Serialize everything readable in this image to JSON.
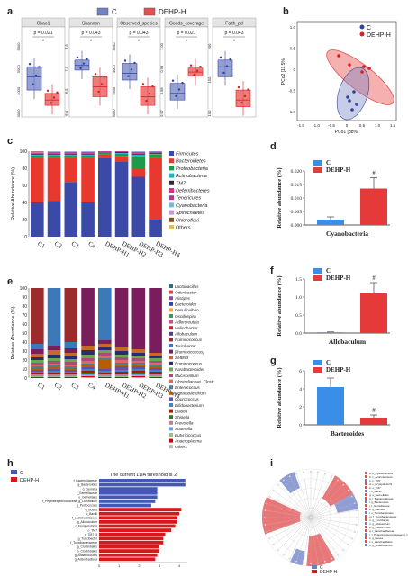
{
  "panel_letters": {
    "a": "a",
    "b": "b",
    "c": "c",
    "d": "d",
    "e": "e",
    "f": "f",
    "g": "g",
    "h": "h",
    "i": "i"
  },
  "colors": {
    "C": "#7282c4",
    "DEHP": "#e8504f",
    "C_dark": "#3342a0",
    "DEHP_dark": "#d61f26",
    "bar_blue": "#3b8ee8",
    "bar_red": "#e63a3a"
  },
  "legend_top": {
    "c": "C",
    "dehp": "DEHP-H"
  },
  "panel_a": {
    "facets": [
      {
        "title": "Chao1",
        "p": "p = 0.021",
        "sig": "*",
        "yticks": [
          "6000",
          "5000",
          "4000",
          "3000"
        ]
      },
      {
        "title": "Shannon",
        "p": "p = 0.043",
        "sig": "*",
        "yticks": [
          "7.5",
          "7.0",
          "6.5",
          "6.0"
        ]
      },
      {
        "title": "Observed_species",
        "p": "p = 0.043",
        "sig": "*",
        "yticks": [
          "4500",
          "4000",
          "3500",
          "3000"
        ]
      },
      {
        "title": "Goods_coverage",
        "p": "p = 0.021",
        "sig": "*",
        "yticks": [
          "1.00",
          "0.99",
          "0.98",
          "0.97"
        ]
      },
      {
        "title": "Faith_pd",
        "p": "p = 0.043",
        "sig": "*",
        "yticks": [
          "200",
          "150",
          "100"
        ]
      }
    ]
  },
  "panel_b": {
    "legend": [
      "C",
      "DEHP-H"
    ],
    "xlabel": "PCo1 [38%]",
    "ylabel": "PCo2 [11.5%]",
    "xticks": [
      "-1.5",
      "-1.0",
      "-0.5",
      "0",
      "0.5",
      "1.0",
      "1.5"
    ],
    "yticks": [
      "1.0",
      "0.5",
      "0",
      "-0.5",
      "-1.0"
    ]
  },
  "panel_c": {
    "ylabel": "Relative Abundance (%)",
    "yticks": [
      "100",
      "80",
      "60",
      "40",
      "20",
      "0"
    ],
    "samples": [
      "C1",
      "C2",
      "C3",
      "C4",
      "DEHP-H1",
      "DEHP-H2",
      "DEHP-H3",
      "DEHP-H4"
    ],
    "legend": [
      "Firmicutes",
      "Bacteroidetes",
      "Proteobacteria",
      "Actinobacteria",
      "TM7",
      "Deferribacteres",
      "Tenericutes",
      "Cyanobacteria",
      "Spirochaetes",
      "Chloroflexi",
      "Others"
    ]
  },
  "panel_d": {
    "legend": [
      "C",
      "DEHP-H"
    ],
    "ylabel": "Relative abundance (%)",
    "yticks": [
      "0.020",
      "0.015",
      "0.010",
      "0.005",
      "0.000"
    ],
    "xlabel": "Cyanobacteria",
    "sig": "#"
  },
  "panel_e": {
    "ylabel": "Relative Abundance (%)",
    "yticks": [
      "100",
      "90",
      "80",
      "70",
      "60",
      "50",
      "40",
      "30",
      "20",
      "10",
      "0"
    ],
    "samples": [
      "C1",
      "C2",
      "C3",
      "C4",
      "DEHP-H1",
      "DEHP-H2",
      "DEHP-H3",
      "DEHP-H4"
    ],
    "legend": [
      "Lactobacillus",
      "Odoribacter",
      "Alistipes",
      "Bacteroides",
      "Desulfovibrio",
      "Oscillospira",
      "Adlercreutzia",
      "Helicobacter",
      "Allobaculum",
      "Ruminococcus",
      "Turicibacter",
      "[Ruminococcus]",
      "SMB53",
      "Ruminococcus",
      "Parabacteroides",
      "Mucispirillum",
      "Clostridiaceae_Clostr",
      "Enterococcus",
      "Dehalobacterium",
      "Coprococcus",
      "Bifidobacterium",
      "Blautia",
      "Shigella",
      "Prevotella",
      "Sutterella",
      "Butyricicoccus",
      "Anaeroplasma",
      "Others"
    ]
  },
  "panel_f": {
    "legend": [
      "C",
      "DEHP-H"
    ],
    "ylabel": "Relative abundance (%)",
    "yticks": [
      "1.5",
      "1.0",
      "0.5",
      "0.0"
    ],
    "xlabel": "Allobaculum",
    "sig": "#"
  },
  "panel_g": {
    "legend": [
      "C",
      "DEHP-H"
    ],
    "ylabel": "Relative abundance (%)",
    "yticks": [
      "6",
      "4",
      "2",
      "0"
    ],
    "xlabel": "Bacteroides",
    "sig": "#"
  },
  "panel_h": {
    "title": "The current LDA threshold is 2",
    "legend": [
      "C",
      "DEHP-H"
    ],
    "xticks": [
      "0",
      "1",
      "2",
      "3",
      "4"
    ],
    "bars": [
      {
        "label": "f_Bacteroidaceae",
        "group": "C",
        "value": 4.3
      },
      {
        "label": "g_Bacteroides",
        "group": "C",
        "value": 4.3
      },
      {
        "label": "g_Gemella",
        "group": "C",
        "value": 2.9
      },
      {
        "label": "f_Gemellaceae",
        "group": "C",
        "value": 2.9
      },
      {
        "label": "o_Gemellales",
        "group": "C",
        "value": 2.9
      },
      {
        "label": "f_Peptostreptococcaceae_g_Clostridium",
        "group": "C",
        "value": 2.8
      },
      {
        "label": "g_Pediococcus",
        "group": "C",
        "value": 2.6
      },
      {
        "label": "g_Bosea",
        "group": "DEHP-H",
        "value": 4.1
      },
      {
        "label": "c_Bacilli",
        "group": "DEHP-H",
        "value": 4.0
      },
      {
        "label": "f_Lactobacillaceae",
        "group": "DEHP-H",
        "value": 3.9
      },
      {
        "label": "g_Allobaculum",
        "group": "DEHP-H",
        "value": 3.9
      },
      {
        "label": "c_Erysipelotrichi",
        "group": "DEHP-H",
        "value": 3.8
      },
      {
        "label": "o_TM7",
        "group": "DEHP-H",
        "value": 3.6
      },
      {
        "label": "c_TM7_3",
        "group": "DEHP-H",
        "value": 3.3
      },
      {
        "label": "g_Turicibacter",
        "group": "DEHP-H",
        "value": 3.2
      },
      {
        "label": "f_Turicibacteraceae",
        "group": "DEHP-H",
        "value": 3.2
      },
      {
        "label": "g_Clostridiales",
        "group": "DEHP-H",
        "value": 3.0
      },
      {
        "label": "o_Clostridiales",
        "group": "DEHP-H",
        "value": 3.0
      },
      {
        "label": "g_Anaerococcus",
        "group": "DEHP-H",
        "value": 2.9
      },
      {
        "label": "g_Actinobacteria",
        "group": "DEHP-H",
        "value": 2.8
      }
    ]
  },
  "panel_i": {
    "legend": [
      "C",
      "DEHP-H"
    ],
    "key": [
      "a: p_Cyanobacteria",
      "b: c_Actinobacteria",
      "c: o_TM7",
      "d: c_Erysipelotrichi",
      "e: o_TM7",
      "f: c_Bacilli",
      "g: o_Gemellales",
      "h: f_Bacteroidaceae",
      "i: g_Bacteroides",
      "j: f_Gemellaceae",
      "k: g_Gemella",
      "l: o_Turicibacterales",
      "m: f_Turicibacteraceae",
      "n: g_Turicibacter",
      "o: g_Allobaculum",
      "p: g_Pediococcus",
      "q: f_Lactobacillaceae",
      "r: f_Peptostreptococcaceae_g_Clostridium",
      "s: g_Bosea",
      "t: o_Lactobacillales",
      "u: g_Anaerococcus"
    ]
  }
}
